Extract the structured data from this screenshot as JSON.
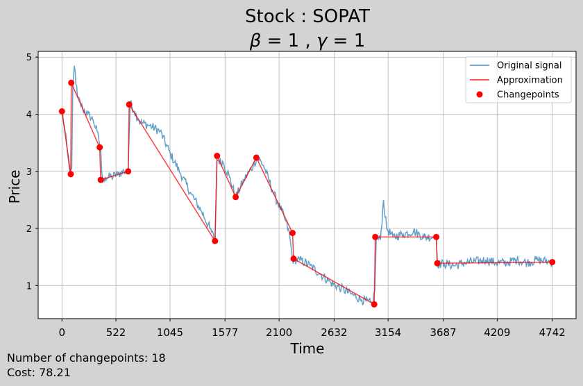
{
  "chart_data": {
    "type": "line",
    "title_line1": "Stock : SOPAT",
    "title_line2": {
      "beta_symbol": "β",
      "beta_value": "1",
      "gamma_symbol": "γ",
      "gamma_value": "1"
    },
    "xlabel": "Time",
    "ylabel": "Price",
    "xlim": [
      -230,
      4972
    ],
    "ylim": [
      0.42,
      5.1
    ],
    "xticks": [
      0,
      522,
      1045,
      1577,
      2100,
      2632,
      3154,
      3687,
      4209,
      4742
    ],
    "yticks": [
      1,
      2,
      3,
      4,
      5
    ],
    "grid": true,
    "legend_position": "upper right",
    "legend": [
      "Original signal",
      "Approximation",
      "Changepoints"
    ],
    "colors": {
      "signal": "#1f77b4",
      "approximation": "#ff0000",
      "changepoints": "#ff0000"
    },
    "signal_keypoints": [
      [
        0,
        4.05
      ],
      [
        30,
        3.7
      ],
      [
        55,
        3.3
      ],
      [
        75,
        3.0
      ],
      [
        95,
        3.05
      ],
      [
        105,
        4.5
      ],
      [
        120,
        4.85
      ],
      [
        150,
        4.3
      ],
      [
        200,
        4.1
      ],
      [
        250,
        4.0
      ],
      [
        300,
        3.9
      ],
      [
        340,
        3.7
      ],
      [
        375,
        3.4
      ],
      [
        385,
        3.0
      ],
      [
        395,
        2.8
      ],
      [
        420,
        2.9
      ],
      [
        480,
        2.9
      ],
      [
        540,
        2.95
      ],
      [
        600,
        3.0
      ],
      [
        640,
        3.0
      ],
      [
        660,
        4.2
      ],
      [
        700,
        4.05
      ],
      [
        760,
        3.85
      ],
      [
        850,
        3.8
      ],
      [
        950,
        3.7
      ],
      [
        1050,
        3.3
      ],
      [
        1150,
        2.95
      ],
      [
        1250,
        2.6
      ],
      [
        1350,
        2.3
      ],
      [
        1430,
        2.0
      ],
      [
        1480,
        1.8
      ],
      [
        1500,
        3.2
      ],
      [
        1560,
        3.15
      ],
      [
        1620,
        2.9
      ],
      [
        1680,
        2.55
      ],
      [
        1760,
        2.85
      ],
      [
        1850,
        3.1
      ],
      [
        1890,
        3.25
      ],
      [
        1950,
        3.1
      ],
      [
        2050,
        2.6
      ],
      [
        2150,
        2.2
      ],
      [
        2200,
        1.9
      ],
      [
        2230,
        1.45
      ],
      [
        2300,
        1.45
      ],
      [
        2400,
        1.35
      ],
      [
        2500,
        1.2
      ],
      [
        2600,
        1.05
      ],
      [
        2700,
        0.95
      ],
      [
        2800,
        0.85
      ],
      [
        2900,
        0.75
      ],
      [
        3000,
        0.68
      ],
      [
        3025,
        0.9
      ],
      [
        3040,
        1.85
      ],
      [
        3080,
        1.8
      ],
      [
        3110,
        2.5
      ],
      [
        3140,
        2.0
      ],
      [
        3200,
        1.85
      ],
      [
        3300,
        1.9
      ],
      [
        3400,
        1.95
      ],
      [
        3500,
        1.85
      ],
      [
        3600,
        1.85
      ],
      [
        3620,
        1.85
      ],
      [
        3630,
        1.38
      ],
      [
        3700,
        1.38
      ],
      [
        3800,
        1.35
      ],
      [
        3900,
        1.4
      ],
      [
        4000,
        1.42
      ],
      [
        4100,
        1.45
      ],
      [
        4200,
        1.4
      ],
      [
        4300,
        1.4
      ],
      [
        4400,
        1.45
      ],
      [
        4500,
        1.4
      ],
      [
        4600,
        1.45
      ],
      [
        4700,
        1.42
      ],
      [
        4742,
        1.4
      ]
    ],
    "changepoints": [
      [
        0,
        4.05
      ],
      [
        85,
        2.95
      ],
      [
        90,
        4.55
      ],
      [
        365,
        3.42
      ],
      [
        375,
        2.85
      ],
      [
        640,
        3.0
      ],
      [
        650,
        4.17
      ],
      [
        1480,
        1.78
      ],
      [
        1500,
        3.27
      ],
      [
        1680,
        2.55
      ],
      [
        1880,
        3.24
      ],
      [
        2230,
        1.92
      ],
      [
        2240,
        1.47
      ],
      [
        3020,
        0.67
      ],
      [
        3030,
        1.85
      ],
      [
        3620,
        1.85
      ],
      [
        3630,
        1.39
      ],
      [
        4742,
        1.41
      ]
    ]
  },
  "footer": {
    "changepoints_label": "Number of changepoints:",
    "changepoints_value": "18",
    "cost_label": "Cost:",
    "cost_value": "78.21"
  }
}
